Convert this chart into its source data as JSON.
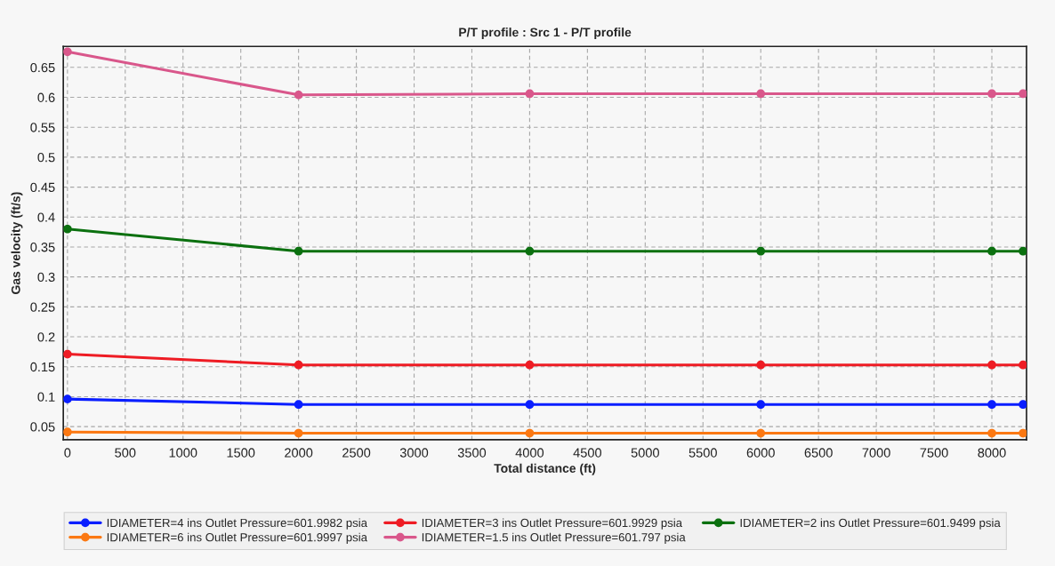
{
  "chart_data": {
    "type": "line",
    "title": "P/T profile : Src 1 - P/T profile",
    "xlabel": "Total distance (ft)",
    "ylabel": "Gas velocity (ft/s)",
    "x": [
      0,
      2000,
      4000,
      6000,
      8000,
      8270
    ],
    "series": [
      {
        "name": "IDIAMETER=4 ins Outlet Pressure=601.9982 psia",
        "color": "#0a1eff",
        "values": [
          0.096,
          0.087,
          0.087,
          0.087,
          0.087,
          0.087
        ]
      },
      {
        "name": "IDIAMETER=3 ins Outlet Pressure=601.9929 psia",
        "color": "#ee1c24",
        "values": [
          0.171,
          0.153,
          0.153,
          0.153,
          0.153,
          0.153
        ]
      },
      {
        "name": "IDIAMETER=2 ins Outlet Pressure=601.9499 psia",
        "color": "#0b700f",
        "values": [
          0.38,
          0.343,
          0.343,
          0.343,
          0.343,
          0.343
        ]
      },
      {
        "name": "IDIAMETER=6 ins Outlet Pressure=601.9997 psia",
        "color": "#fb7812",
        "values": [
          0.041,
          0.039,
          0.039,
          0.039,
          0.039,
          0.039
        ]
      },
      {
        "name": "IDIAMETER=1.5 ins Outlet Pressure=601.797 psia",
        "color": "#d9578b",
        "values": [
          0.676,
          0.604,
          0.606,
          0.606,
          0.606,
          0.606
        ]
      }
    ],
    "xlim": [
      -36,
      8300
    ],
    "ylim": [
      0.028,
      0.685
    ],
    "xticks": [
      0,
      500,
      1000,
      1500,
      2000,
      2500,
      3000,
      3500,
      4000,
      4500,
      5000,
      5500,
      6000,
      6500,
      7000,
      7500,
      8000
    ],
    "yticks": [
      0.05,
      0.1,
      0.15,
      0.2,
      0.25,
      0.3,
      0.35,
      0.4,
      0.45,
      0.5,
      0.55,
      0.6,
      0.65
    ],
    "grid": true,
    "legend": "bottom",
    "marker": "circle",
    "line_style": "solid"
  }
}
